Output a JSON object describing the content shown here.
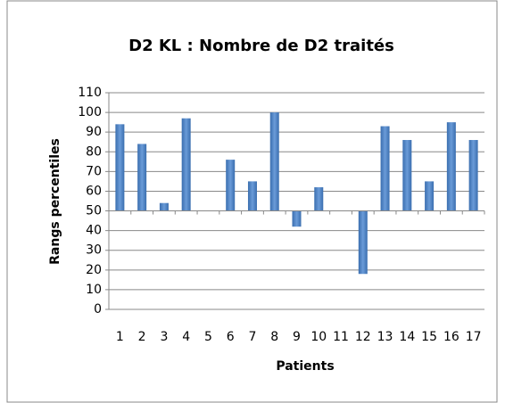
{
  "chart_data": {
    "type": "bar",
    "title": "D2 KL : Nombre de D2 traités",
    "x_label": "Patients",
    "y_label": "Rangs percentiles",
    "categories": [
      "1",
      "2",
      "3",
      "4",
      "5",
      "6",
      "7",
      "8",
      "9",
      "10",
      "11",
      "12",
      "13",
      "14",
      "15",
      "16",
      "17"
    ],
    "values": [
      94,
      84,
      54,
      97,
      50,
      76,
      65,
      100,
      42,
      62,
      50,
      18,
      93,
      86,
      65,
      95,
      86
    ],
    "color": "#4a7ebb",
    "ylim": [
      0,
      110
    ],
    "yticks": [
      0,
      10,
      20,
      30,
      40,
      50,
      60,
      70,
      80,
      90,
      100,
      110
    ],
    "x_axis_crosses": 50,
    "grid": true,
    "legend": false
  }
}
